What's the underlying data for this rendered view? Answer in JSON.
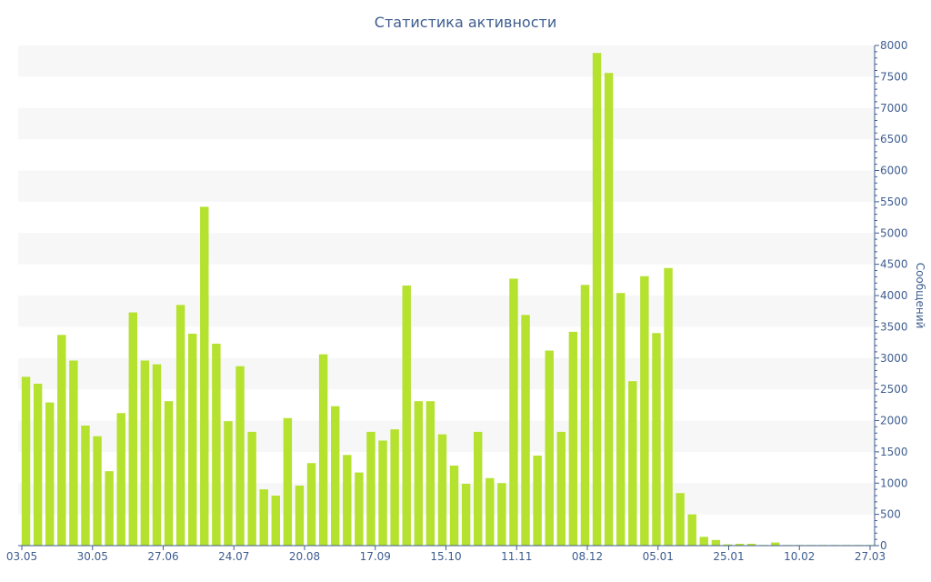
{
  "chart_data": {
    "type": "bar",
    "title": "Статистика активности",
    "ylabel": "Сообщений",
    "xlabel": "",
    "ylim": [
      0,
      8000
    ],
    "yticks": [
      0,
      500,
      1000,
      1500,
      2000,
      2500,
      3000,
      3500,
      4000,
      4500,
      5000,
      5500,
      6000,
      6500,
      7000,
      7500,
      8000
    ],
    "x_tick_labels": [
      "03.05",
      "30.05",
      "27.06",
      "24.07",
      "20.08",
      "17.09",
      "15.10",
      "11.11",
      "08.12",
      "05.01",
      "25.01",
      "10.02",
      "27.03"
    ],
    "grid": "horizontal bands",
    "legend": "none",
    "colors": {
      "bar": "#b5e12f",
      "text": "#3e5d90",
      "band": "#f7f7f7"
    },
    "values": [
      2700,
      2590,
      2290,
      3370,
      2960,
      1920,
      1750,
      1190,
      2120,
      3730,
      2960,
      2900,
      2310,
      3850,
      3390,
      5420,
      3230,
      1990,
      2870,
      1820,
      900,
      800,
      2040,
      960,
      1320,
      3060,
      2230,
      1450,
      1170,
      1820,
      1680,
      1860,
      4160,
      2310,
      2310,
      1780,
      1280,
      990,
      1820,
      1080,
      1000,
      4270,
      3690,
      1440,
      3120,
      1820,
      3420,
      4170,
      7880,
      7560,
      4040,
      2630,
      4310,
      3400,
      4440,
      840,
      500,
      140,
      90,
      20,
      30,
      30,
      10,
      50,
      10,
      10,
      10,
      10,
      10,
      10,
      10,
      10
    ]
  }
}
